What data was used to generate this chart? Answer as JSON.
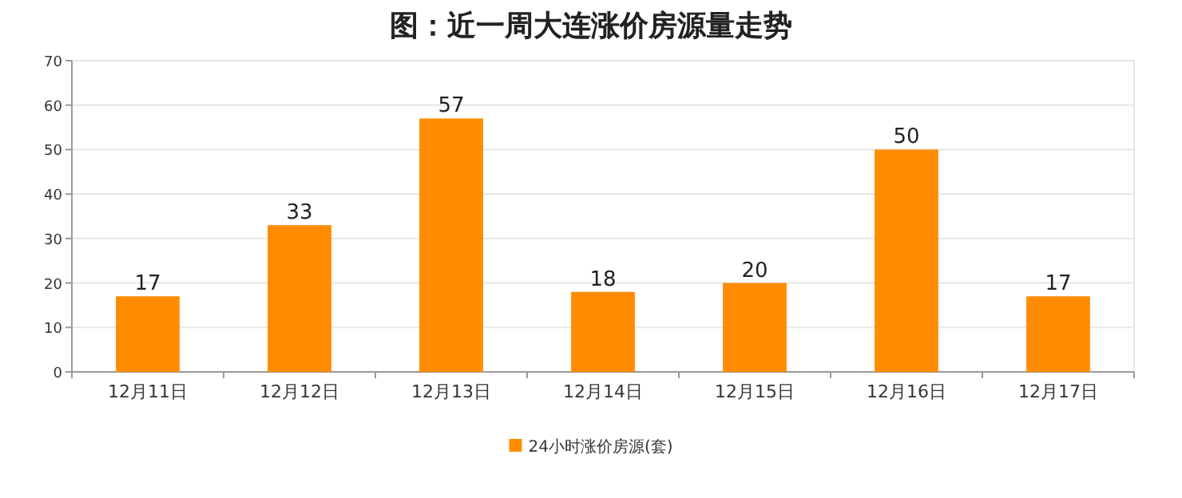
{
  "chart_data": {
    "type": "bar",
    "title": "图：近一周大连涨价房源量走势",
    "categories": [
      "12月11日",
      "12月12日",
      "12月13日",
      "12月14日",
      "12月15日",
      "12月16日",
      "12月17日"
    ],
    "series": [
      {
        "name": "24小时涨价房源(套)",
        "color": "#ff8c00",
        "values": [
          17,
          33,
          57,
          18,
          20,
          50,
          17
        ]
      }
    ],
    "ylim": [
      0,
      70
    ],
    "yticks": [
      0,
      10,
      20,
      30,
      40,
      50,
      60,
      70
    ],
    "grid": "y",
    "legend": "bottom",
    "data_labels": true
  }
}
